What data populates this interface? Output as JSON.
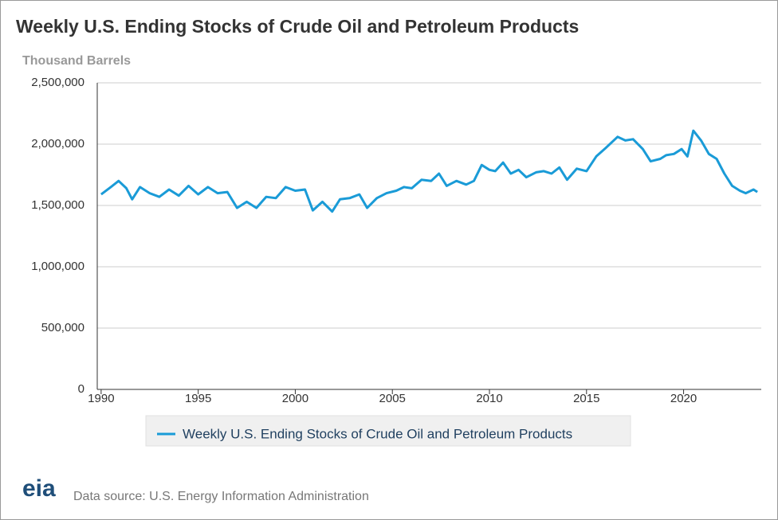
{
  "chart_data": {
    "type": "line",
    "title": "Weekly U.S. Ending Stocks of Crude Oil and Petroleum Products",
    "y_axis_label": "Thousand Barrels",
    "source": "Data source: U.S. Energy Information Administration",
    "logo": "eia",
    "legend": "bottom",
    "grid": true,
    "xlim": [
      1989.8,
      2024
    ],
    "ylim": [
      0,
      2500000
    ],
    "xticks": [
      1990,
      1995,
      2000,
      2005,
      2010,
      2015,
      2020
    ],
    "yticks": [
      0,
      {
        "value": 500000,
        "label": "500,000"
      },
      {
        "value": 1000000,
        "label": "1,000,000"
      },
      {
        "value": 1500000,
        "label": "1,500,000"
      },
      {
        "value": 2000000,
        "label": "2,000,000"
      },
      {
        "value": 2500000,
        "label": "2,500,000"
      }
    ],
    "x": [
      1990.0,
      1990.5,
      1990.9,
      1991.3,
      1991.6,
      1992.0,
      1992.5,
      1993.0,
      1993.5,
      1994.0,
      1994.5,
      1995.0,
      1995.5,
      1996.0,
      1996.5,
      1997.0,
      1997.5,
      1998.0,
      1998.5,
      1999.0,
      1999.5,
      2000.0,
      2000.5,
      2000.9,
      2001.4,
      2001.9,
      2002.3,
      2002.8,
      2003.3,
      2003.7,
      2004.2,
      2004.7,
      2005.2,
      2005.6,
      2006.0,
      2006.5,
      2007.0,
      2007.4,
      2007.8,
      2008.3,
      2008.8,
      2009.2,
      2009.6,
      2010.0,
      2010.3,
      2010.7,
      2011.1,
      2011.5,
      2011.9,
      2012.4,
      2012.8,
      2013.2,
      2013.6,
      2014.0,
      2014.5,
      2015.0,
      2015.5,
      2016.0,
      2016.6,
      2017.0,
      2017.4,
      2017.9,
      2018.3,
      2018.8,
      2019.1,
      2019.5,
      2019.9,
      2020.2,
      2020.5,
      2020.9,
      2021.3,
      2021.7,
      2022.1,
      2022.5,
      2022.9,
      2023.2,
      2023.6,
      2023.8
    ],
    "series": [
      {
        "name": "Weekly U.S. Ending Stocks of Crude Oil and Petroleum Products",
        "color": "#1a9bd7",
        "values": [
          1590000,
          1650000,
          1700000,
          1640000,
          1550000,
          1650000,
          1600000,
          1570000,
          1630000,
          1580000,
          1660000,
          1590000,
          1650000,
          1600000,
          1610000,
          1480000,
          1530000,
          1480000,
          1570000,
          1560000,
          1650000,
          1620000,
          1630000,
          1460000,
          1530000,
          1450000,
          1550000,
          1560000,
          1590000,
          1480000,
          1560000,
          1600000,
          1620000,
          1650000,
          1640000,
          1710000,
          1700000,
          1760000,
          1660000,
          1700000,
          1670000,
          1700000,
          1830000,
          1790000,
          1780000,
          1850000,
          1760000,
          1790000,
          1730000,
          1770000,
          1780000,
          1760000,
          1810000,
          1710000,
          1800000,
          1780000,
          1900000,
          1970000,
          2060000,
          2030000,
          2040000,
          1960000,
          1860000,
          1880000,
          1910000,
          1920000,
          1960000,
          1900000,
          2110000,
          2030000,
          1920000,
          1880000,
          1760000,
          1660000,
          1620000,
          1600000,
          1630000,
          1610000
        ]
      }
    ]
  }
}
